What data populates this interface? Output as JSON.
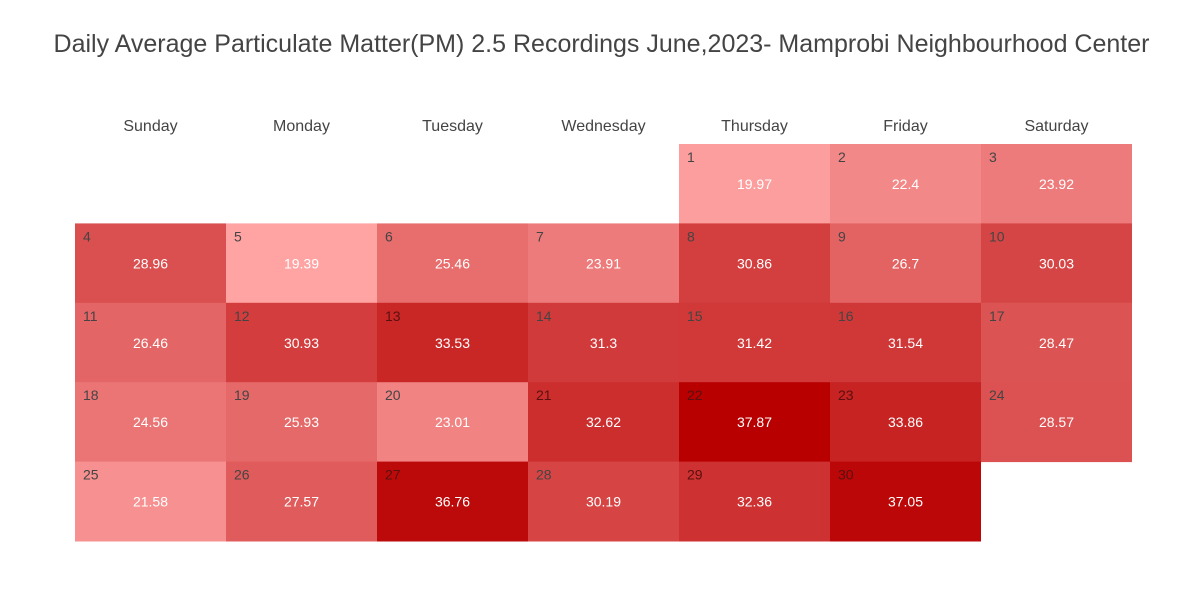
{
  "chart_data": {
    "type": "heatmap",
    "title": "Daily Average Particulate Matter(PM) 2.5 Recordings June,2023- Mamprobi Neighbourhood Center",
    "weekdays": [
      "Sunday",
      "Monday",
      "Tuesday",
      "Wednesday",
      "Thursday",
      "Friday",
      "Saturday"
    ],
    "first_weekday_index": 4,
    "days": [
      1,
      2,
      3,
      4,
      5,
      6,
      7,
      8,
      9,
      10,
      11,
      12,
      13,
      14,
      15,
      16,
      17,
      18,
      19,
      20,
      21,
      22,
      23,
      24,
      25,
      26,
      27,
      28,
      29,
      30
    ],
    "values": [
      19.97,
      22.4,
      23.92,
      28.96,
      19.39,
      25.46,
      23.91,
      30.86,
      26.7,
      30.03,
      26.46,
      30.93,
      33.53,
      31.3,
      31.42,
      31.54,
      28.47,
      24.56,
      25.93,
      23.01,
      32.62,
      37.87,
      33.86,
      28.57,
      21.58,
      27.57,
      36.76,
      30.19,
      32.36,
      37.05
    ],
    "value_labels": [
      "19.97",
      "22.4",
      "23.92",
      "28.96",
      "19.39",
      "25.46",
      "23.91",
      "30.86",
      "26.7",
      "30.03",
      "26.46",
      "30.93",
      "33.53",
      "31.3",
      "31.42",
      "31.54",
      "28.47",
      "24.56",
      "25.93",
      "23.01",
      "32.62",
      "37.87",
      "33.86",
      "28.57",
      "21.58",
      "27.57",
      "36.76",
      "30.19",
      "32.36",
      "37.05"
    ],
    "color_scale": {
      "low_color": "#ffa3a3",
      "high_color": "#b80000"
    }
  }
}
